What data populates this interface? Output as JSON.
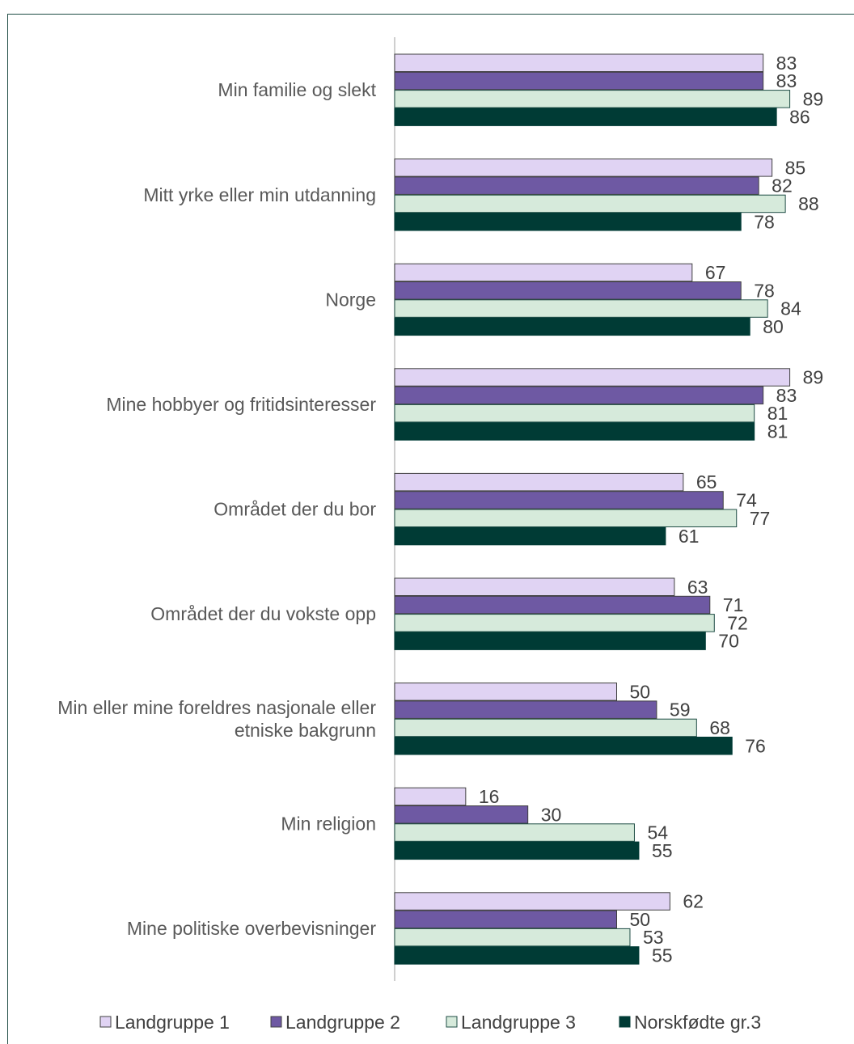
{
  "chart_data": {
    "type": "bar",
    "orientation": "horizontal",
    "categories": [
      "Min familie og slekt",
      "Mitt yrke eller min utdanning",
      "Norge",
      "Mine hobbyer og fritidsinteresser",
      "Området der du bor",
      "Området der du vokste opp",
      "Min eller mine foreldres nasjonale eller etniske bakgrunn",
      "Min religion",
      "Mine politiske overbevisninger"
    ],
    "series": [
      {
        "name": "Landgruppe 1",
        "values": [
          83,
          85,
          67,
          89,
          65,
          63,
          50,
          16,
          62
        ]
      },
      {
        "name": "Landgruppe 2",
        "values": [
          83,
          82,
          78,
          83,
          74,
          71,
          59,
          30,
          50
        ]
      },
      {
        "name": "Landgruppe 3",
        "values": [
          89,
          88,
          84,
          81,
          77,
          72,
          68,
          54,
          53
        ]
      },
      {
        "name": "Norskfødte gr.3",
        "values": [
          86,
          78,
          80,
          81,
          61,
          70,
          76,
          55,
          55
        ]
      }
    ],
    "xlim": [
      0,
      100
    ],
    "grid": false,
    "legend_position": "bottom",
    "colors": [
      "#e0d3f3",
      "#6e59a3",
      "#d6eadb",
      "#003b35"
    ],
    "title": "",
    "xlabel": "",
    "ylabel": ""
  }
}
